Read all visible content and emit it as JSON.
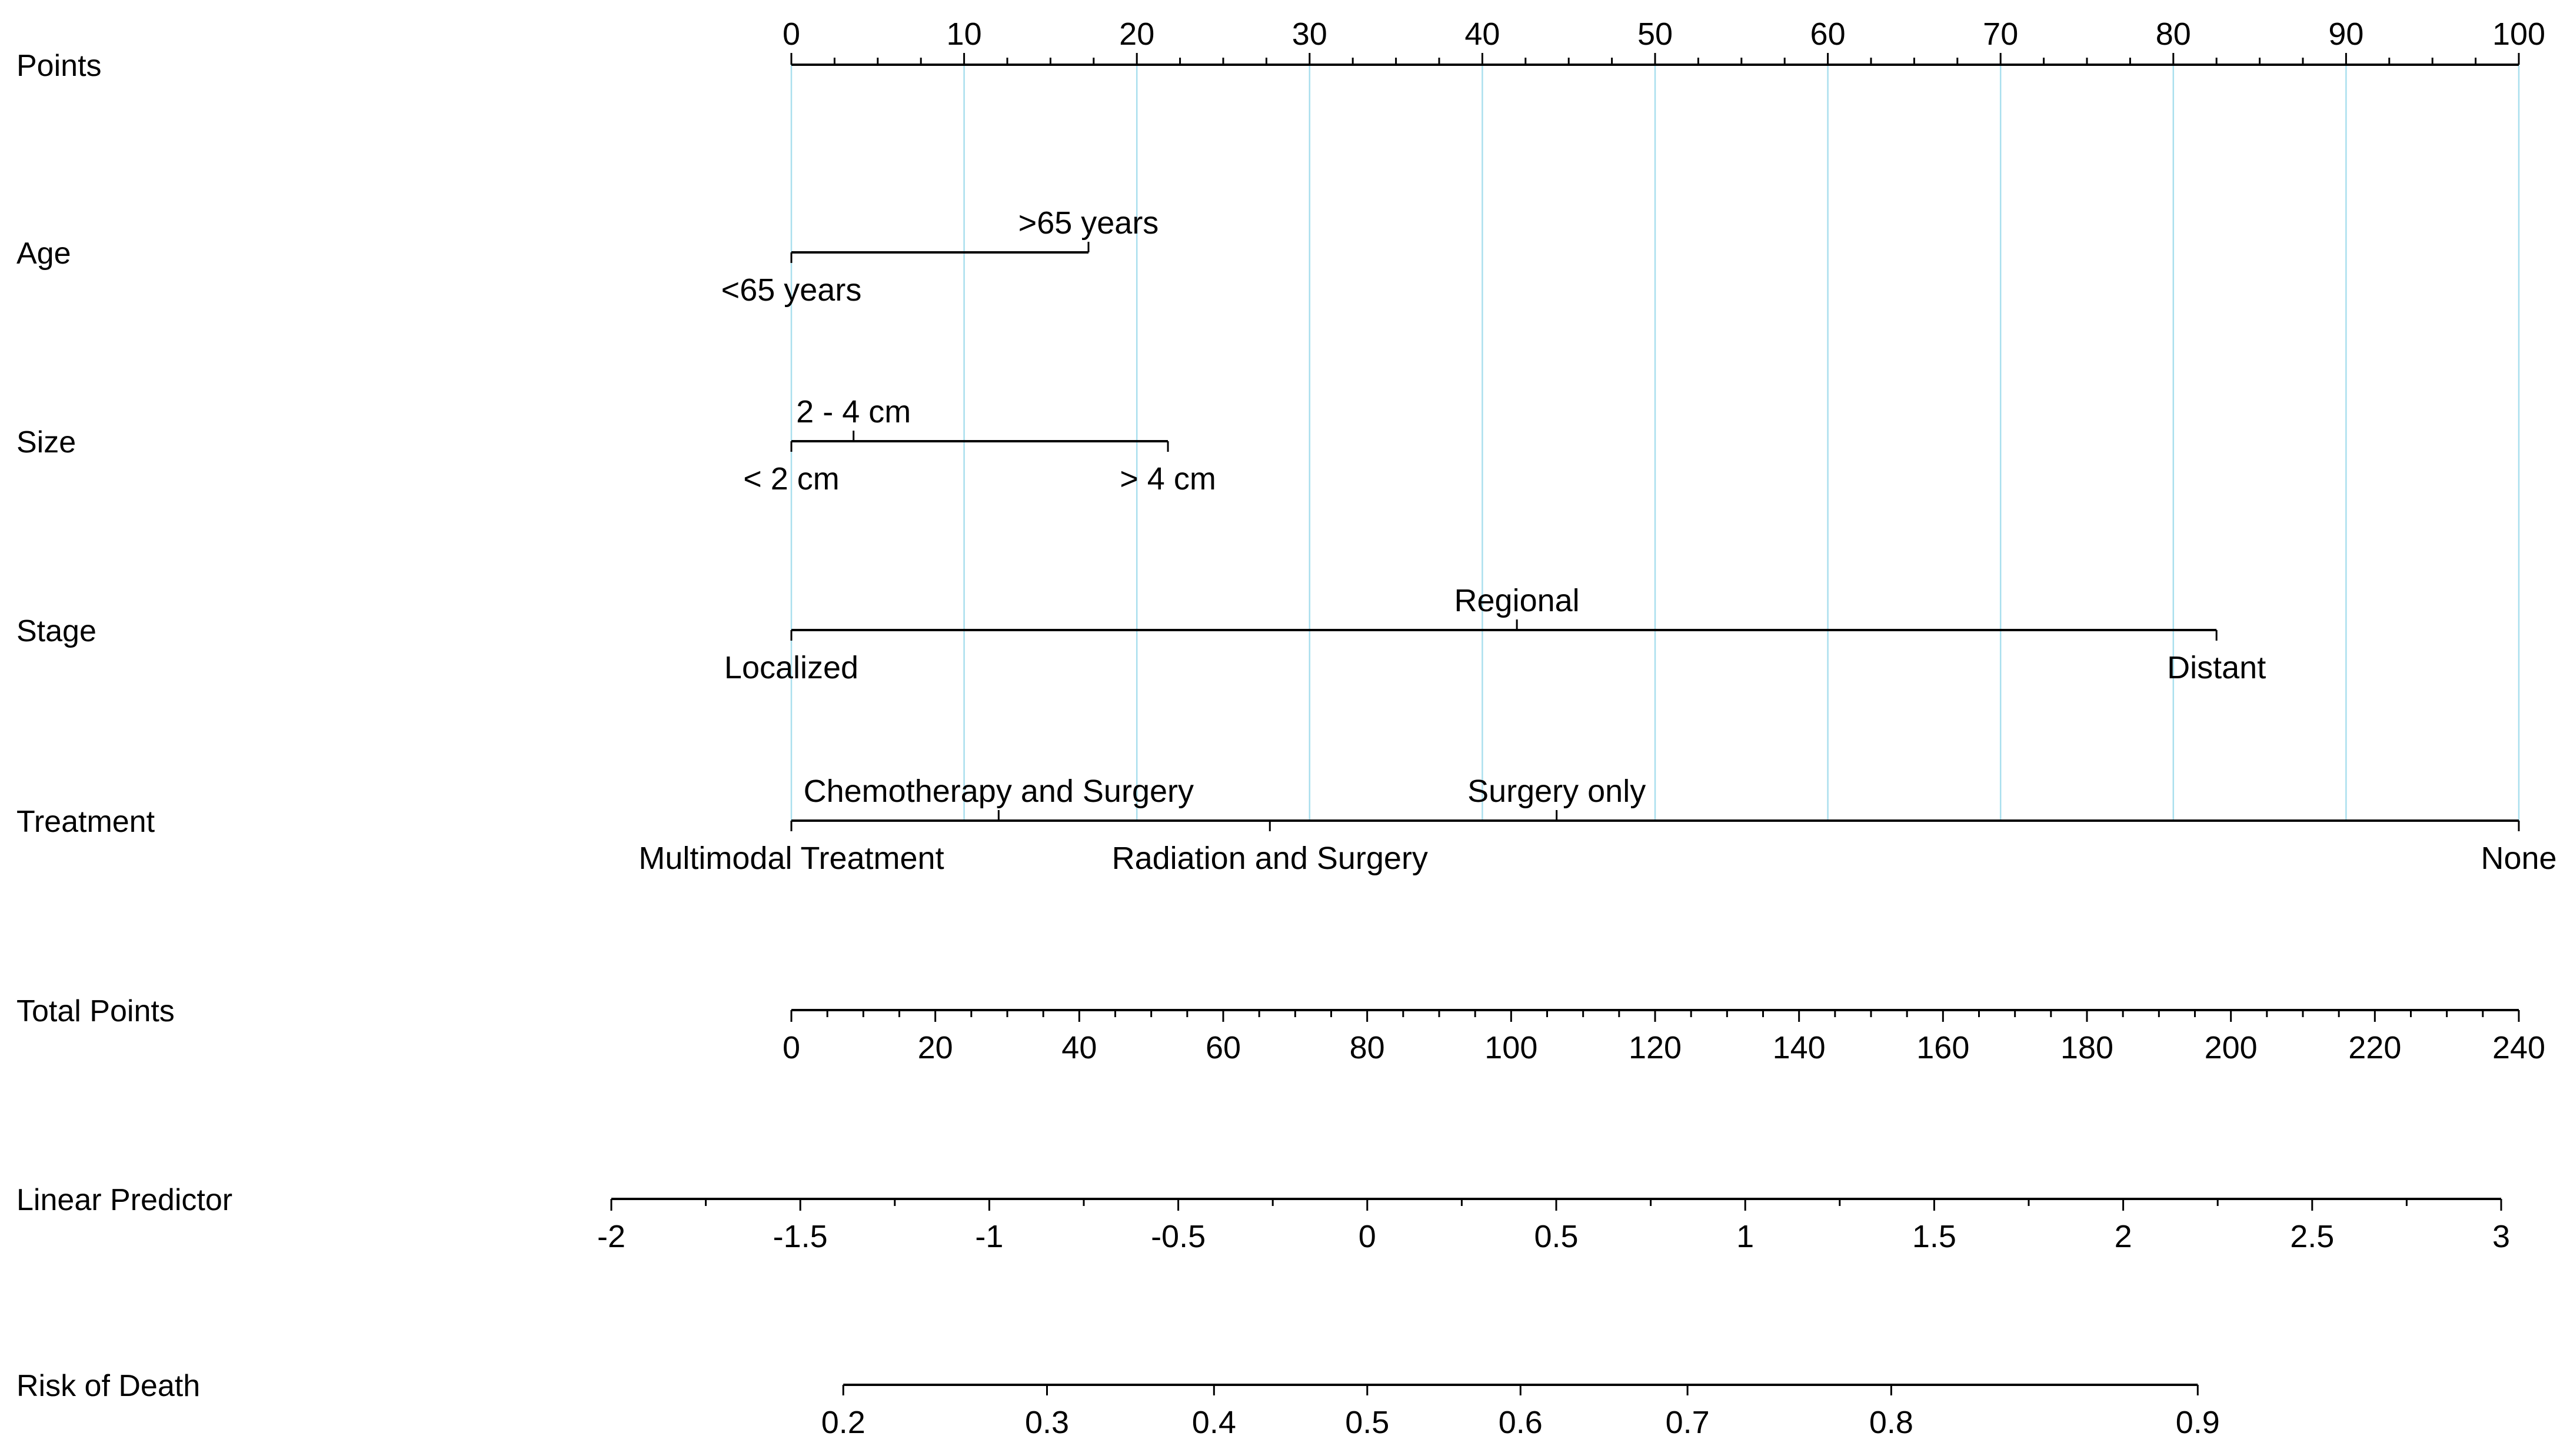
{
  "chart_data": {
    "type": "nomogram",
    "title": "",
    "background": "#ffffff",
    "axis_color": "#000000",
    "text_color": "#000000",
    "gridline_color": "#aadfee",
    "gridline_step_points": 10,
    "rows": [
      {
        "id": "points",
        "label": "Points",
        "kind": "scale",
        "scale": "points",
        "min": 0,
        "max": 100,
        "minor_step": 2.5,
        "major_step": 10,
        "tick_side": "up",
        "tick_labels": [
          "0",
          "10",
          "20",
          "30",
          "40",
          "50",
          "60",
          "70",
          "80",
          "90",
          "100"
        ]
      },
      {
        "id": "age",
        "label": "Age",
        "kind": "categories",
        "items": [
          {
            "label": "<65 years",
            "points": 0,
            "label_side": "below"
          },
          {
            "label": ">65 years",
            "points": 17.2,
            "label_side": "above"
          }
        ]
      },
      {
        "id": "size",
        "label": "Size",
        "kind": "categories",
        "items": [
          {
            "label": "< 2 cm",
            "points": 0,
            "label_side": "below"
          },
          {
            "label": "2 - 4 cm",
            "points": 3.6,
            "label_side": "above"
          },
          {
            "label": "> 4 cm",
            "points": 21.8,
            "label_side": "below"
          }
        ]
      },
      {
        "id": "stage",
        "label": "Stage",
        "kind": "categories",
        "items": [
          {
            "label": "Localized",
            "points": 0,
            "label_side": "below"
          },
          {
            "label": "Regional",
            "points": 42,
            "label_side": "above"
          },
          {
            "label": "Distant",
            "points": 82.5,
            "label_side": "below"
          }
        ]
      },
      {
        "id": "treatment",
        "label": "Treatment",
        "kind": "categories",
        "items": [
          {
            "label": "Multimodal Treatment",
            "points": 0,
            "label_side": "below"
          },
          {
            "label": "Chemotherapy and Surgery",
            "points": 12,
            "label_side": "above"
          },
          {
            "label": "Radiation and Surgery",
            "points": 27.7,
            "label_side": "below"
          },
          {
            "label": "Surgery only",
            "points": 44.3,
            "label_side": "above"
          },
          {
            "label": "None",
            "points": 100,
            "label_side": "below"
          }
        ]
      },
      {
        "id": "total_points",
        "label": "Total Points",
        "kind": "scale",
        "scale": "total",
        "min": 0,
        "max": 240,
        "minor_step": 5,
        "major_step": 20,
        "tick_side": "down",
        "tick_labels": [
          "0",
          "20",
          "40",
          "60",
          "80",
          "100",
          "120",
          "140",
          "160",
          "180",
          "200",
          "220",
          "240"
        ]
      },
      {
        "id": "linear_predictor",
        "label": "Linear Predictor",
        "kind": "scale",
        "scale": "lp",
        "min": -2,
        "max": 3,
        "minor_step": 0.25,
        "major_step": 0.5,
        "tick_side": "down",
        "tick_labels": [
          "-2",
          "-1.5",
          "-1",
          "-0.5",
          "0",
          "0.5",
          "1",
          "1.5",
          "2",
          "2.5",
          "3"
        ]
      },
      {
        "id": "risk_of_death",
        "label": "Risk of Death",
        "kind": "prob_scale",
        "scale": "risk",
        "transform": "logit",
        "ticks": [
          0.2,
          0.3,
          0.4,
          0.5,
          0.6,
          0.7,
          0.8,
          0.9
        ],
        "tick_side": "down",
        "tick_labels": [
          "0.2",
          "0.3",
          "0.4",
          "0.5",
          "0.6",
          "0.7",
          "0.8",
          "0.9"
        ]
      }
    ]
  }
}
